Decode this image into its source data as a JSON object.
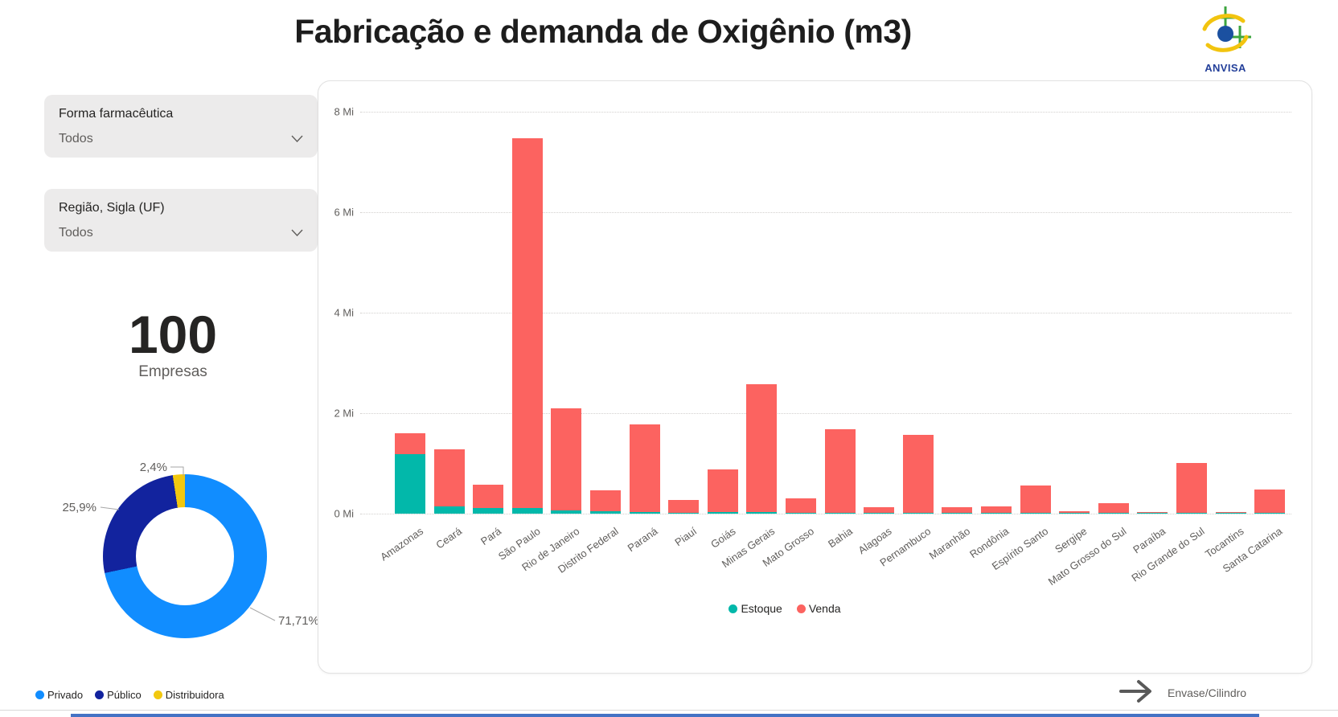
{
  "page": {
    "title": "Fabricação e demanda de Oxigênio (m3)",
    "logo_text": "ANVISA"
  },
  "filters": {
    "forma": {
      "label": "Forma farmacêutica",
      "value": "Todos"
    },
    "regiao": {
      "label": "Região, Sigla (UF)",
      "value": "Todos"
    }
  },
  "kpi": {
    "value": "100",
    "label": "Empresas"
  },
  "footer": {
    "nav_label": "Envase/Cilindro"
  },
  "colors": {
    "privado": "#118DFF",
    "publico": "#12239E",
    "distribuidora": "#F2C80F",
    "estoque": "#02B8AA",
    "venda": "#FC6360"
  },
  "chart_data": [
    {
      "type": "pie",
      "donut": true,
      "labels": [
        "Privado",
        "Público",
        "Distribuidora"
      ],
      "values": [
        71.71,
        25.9,
        2.4
      ],
      "value_labels": [
        "71,71%",
        "25,9%",
        "2,4%"
      ],
      "colors": [
        "#118DFF",
        "#12239E",
        "#F2C80F"
      ],
      "legend_position": "bottom-left"
    },
    {
      "type": "bar",
      "stacked": true,
      "categories": [
        "Amazonas",
        "Ceará",
        "Pará",
        "São Paulo",
        "Rio de Janeiro",
        "Distrito Federal",
        "Paraná",
        "Piauí",
        "Goiás",
        "Minas Gerais",
        "Mato Grosso",
        "Bahia",
        "Alagoas",
        "Pernambuco",
        "Maranhão",
        "Rondônia",
        "Espírito Santo",
        "Sergipe",
        "Mato Grosso do Sul",
        "Paraíba",
        "Rio Grande do Sul",
        "Tocantins",
        "Santa Catarina"
      ],
      "series": [
        {
          "name": "Estoque",
          "color": "#02B8AA",
          "values": [
            1.18,
            0.14,
            0.12,
            0.12,
            0.07,
            0.05,
            0.03,
            0.02,
            0.03,
            0.03,
            0.02,
            0.02,
            0.01,
            0.02,
            0.01,
            0.01,
            0.01,
            0.01,
            0.01,
            0.005,
            0.01,
            0.005,
            0.01
          ]
        },
        {
          "name": "Venda",
          "color": "#FC6360",
          "values": [
            0.42,
            1.14,
            0.45,
            7.35,
            2.03,
            0.42,
            1.75,
            0.25,
            0.85,
            2.54,
            0.28,
            1.66,
            0.11,
            1.55,
            0.11,
            0.13,
            0.54,
            0.04,
            0.19,
            0.015,
            1.0,
            0.015,
            0.47
          ]
        }
      ],
      "unit": "Mi",
      "ylim": [
        0,
        8
      ],
      "ytick_labels": [
        "0 Mi",
        "2 Mi",
        "4 Mi",
        "6 Mi",
        "8 Mi"
      ],
      "grid": "dotted",
      "legend_position": "bottom-center"
    }
  ]
}
